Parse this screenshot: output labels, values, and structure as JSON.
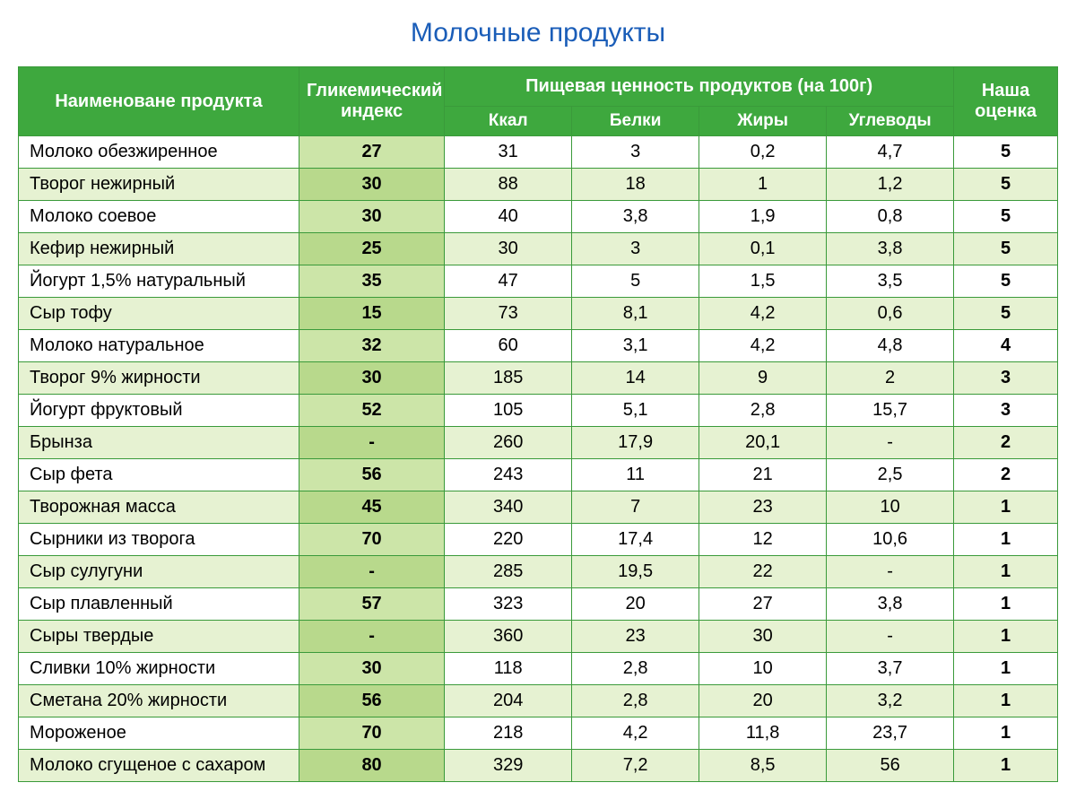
{
  "title": "Молочные продукты",
  "table": {
    "type": "table",
    "header": {
      "product_name": "Наименоване продукта",
      "glycemic_index": "Гликемический индекс",
      "nutritional_value": "Пищевая ценность продуктов (на 100г)",
      "rating": "Наша оценка",
      "sub": {
        "kcal": "Ккал",
        "protein": "Белки",
        "fat": "Жиры",
        "carbs": "Углеводы"
      }
    },
    "colors": {
      "header_bg": "#3ea83e",
      "header_text": "#ffffff",
      "border": "#3a9a3a",
      "row_even_main": "#ffffff",
      "row_odd_main": "#e6f2d2",
      "gi_even": "#cce5a8",
      "gi_odd": "#b8d98c",
      "title_color": "#1a5db8"
    },
    "column_widths_pct": {
      "name": 27,
      "gi": 14,
      "kcal": 12.25,
      "protein": 12.25,
      "fat": 12.25,
      "carbs": 12.25,
      "rating": 10
    },
    "font_sizes": {
      "title": 30,
      "header": 20,
      "sub_header": 19,
      "body": 20
    },
    "rows": [
      {
        "name": "Молоко обезжиренное",
        "gi": "27",
        "kcal": "31",
        "protein": "3",
        "fat": "0,2",
        "carbs": "4,7",
        "rating": "5"
      },
      {
        "name": "Творог нежирный",
        "gi": "30",
        "kcal": "88",
        "protein": "18",
        "fat": "1",
        "carbs": "1,2",
        "rating": "5"
      },
      {
        "name": "Молоко соевое",
        "gi": "30",
        "kcal": "40",
        "protein": "3,8",
        "fat": "1,9",
        "carbs": "0,8",
        "rating": "5"
      },
      {
        "name": "Кефир нежирный",
        "gi": "25",
        "kcal": "30",
        "protein": "3",
        "fat": "0,1",
        "carbs": "3,8",
        "rating": "5"
      },
      {
        "name": "Йогурт 1,5% натуральный",
        "gi": "35",
        "kcal": "47",
        "protein": "5",
        "fat": "1,5",
        "carbs": "3,5",
        "rating": "5"
      },
      {
        "name": "Сыр тофу",
        "gi": "15",
        "kcal": "73",
        "protein": "8,1",
        "fat": "4,2",
        "carbs": "0,6",
        "rating": "5"
      },
      {
        "name": "Молоко натуральное",
        "gi": "32",
        "kcal": "60",
        "protein": "3,1",
        "fat": "4,2",
        "carbs": "4,8",
        "rating": "4"
      },
      {
        "name": "Творог 9% жирности",
        "gi": "30",
        "kcal": "185",
        "protein": "14",
        "fat": "9",
        "carbs": "2",
        "rating": "3"
      },
      {
        "name": "Йогурт фруктовый",
        "gi": "52",
        "kcal": "105",
        "protein": "5,1",
        "fat": "2,8",
        "carbs": "15,7",
        "rating": "3"
      },
      {
        "name": "Брынза",
        "gi": "-",
        "kcal": "260",
        "protein": "17,9",
        "fat": "20,1",
        "carbs": "-",
        "rating": "2"
      },
      {
        "name": "Сыр фета",
        "gi": "56",
        "kcal": "243",
        "protein": "11",
        "fat": "21",
        "carbs": "2,5",
        "rating": "2"
      },
      {
        "name": "Творожная масса",
        "gi": "45",
        "kcal": "340",
        "protein": "7",
        "fat": "23",
        "carbs": "10",
        "rating": "1"
      },
      {
        "name": "Сырники из творога",
        "gi": "70",
        "kcal": "220",
        "protein": "17,4",
        "fat": "12",
        "carbs": "10,6",
        "rating": "1"
      },
      {
        "name": "Сыр сулугуни",
        "gi": "-",
        "kcal": "285",
        "protein": "19,5",
        "fat": "22",
        "carbs": "-",
        "rating": "1"
      },
      {
        "name": "Сыр плавленный",
        "gi": "57",
        "kcal": "323",
        "protein": "20",
        "fat": "27",
        "carbs": "3,8",
        "rating": "1"
      },
      {
        "name": "Сыры твердые",
        "gi": "-",
        "kcal": "360",
        "protein": "23",
        "fat": "30",
        "carbs": "-",
        "rating": "1"
      },
      {
        "name": "Сливки 10% жирности",
        "gi": "30",
        "kcal": "118",
        "protein": "2,8",
        "fat": "10",
        "carbs": "3,7",
        "rating": "1"
      },
      {
        "name": "Сметана 20% жирности",
        "gi": "56",
        "kcal": "204",
        "protein": "2,8",
        "fat": "20",
        "carbs": "3,2",
        "rating": "1"
      },
      {
        "name": "Мороженое",
        "gi": "70",
        "kcal": "218",
        "protein": "4,2",
        "fat": "11,8",
        "carbs": "23,7",
        "rating": "1"
      },
      {
        "name": "Молоко сгущеное с сахаром",
        "gi": "80",
        "kcal": "329",
        "protein": "7,2",
        "fat": "8,5",
        "carbs": "56",
        "rating": "1"
      }
    ]
  }
}
